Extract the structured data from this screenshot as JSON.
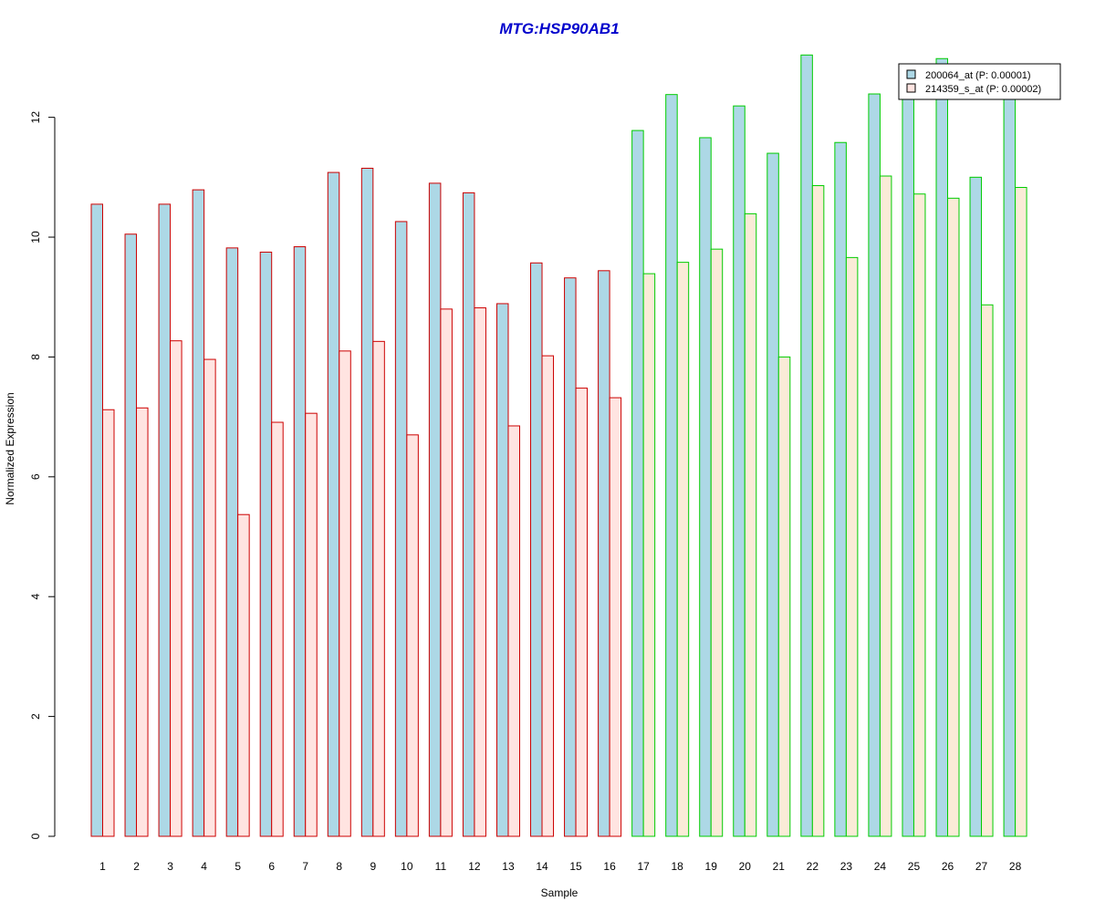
{
  "chart_data": {
    "type": "bar",
    "title": "MTG:HSP90AB1",
    "xlabel": "Sample",
    "ylabel": "Normalized Expression",
    "ylim": [
      0,
      13.06
    ],
    "yticks": [
      0,
      2,
      4,
      6,
      8,
      10,
      12
    ],
    "categories": [
      "1",
      "2",
      "3",
      "4",
      "5",
      "6",
      "7",
      "8",
      "9",
      "10",
      "11",
      "12",
      "13",
      "14",
      "15",
      "16",
      "17",
      "18",
      "19",
      "20",
      "21",
      "22",
      "23",
      "24",
      "25",
      "26",
      "27",
      "28"
    ],
    "series": [
      {
        "name": "200064_at (P: 0.00001)",
        "fill": "#add8e6",
        "values": [
          10.55,
          10.05,
          10.55,
          10.79,
          9.82,
          9.75,
          9.84,
          11.08,
          11.15,
          10.26,
          10.9,
          10.74,
          8.89,
          9.57,
          9.32,
          9.44,
          11.78,
          12.38,
          11.66,
          12.19,
          11.4,
          13.04,
          11.58,
          12.39,
          12.48,
          12.98,
          11.0,
          12.48
        ]
      },
      {
        "name": "214359_s_at (P: 0.00002)",
        "fill": "#ffe4e1",
        "fill_alt": "#faebd7",
        "values": [
          7.12,
          7.15,
          8.27,
          7.96,
          5.37,
          6.91,
          7.06,
          8.1,
          8.26,
          6.7,
          8.8,
          8.82,
          6.85,
          8.02,
          7.48,
          7.32,
          9.39,
          9.58,
          9.8,
          10.39,
          8.0,
          10.86,
          9.66,
          11.02,
          10.72,
          10.65,
          8.87,
          10.83
        ]
      }
    ],
    "group_border_colors": [
      "#cc0000",
      "#cc0000",
      "#cc0000",
      "#cc0000",
      "#cc0000",
      "#cc0000",
      "#cc0000",
      "#cc0000",
      "#cc0000",
      "#cc0000",
      "#cc0000",
      "#cc0000",
      "#cc0000",
      "#cc0000",
      "#cc0000",
      "#cc0000",
      "#00cc00",
      "#00cc00",
      "#00cc00",
      "#00cc00",
      "#00cc00",
      "#00cc00",
      "#00cc00",
      "#00cc00",
      "#00cc00",
      "#00cc00",
      "#00cc00",
      "#00cc00"
    ],
    "legend_position": "top-right",
    "grid": false
  }
}
